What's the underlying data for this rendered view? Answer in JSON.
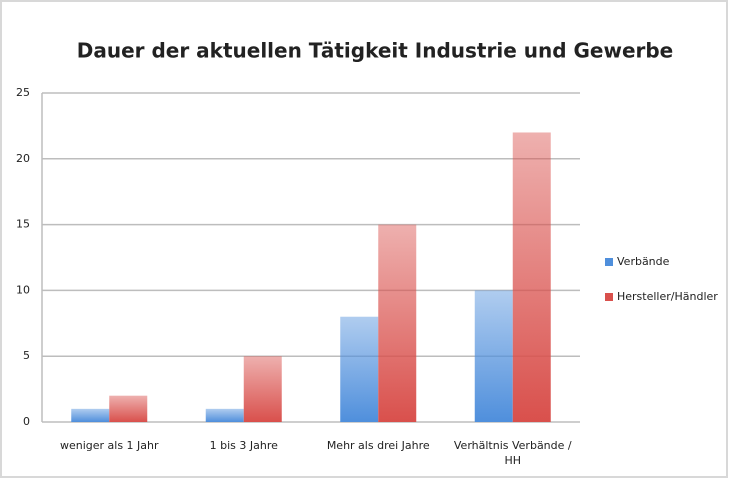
{
  "chart_data": {
    "type": "bar",
    "title": "Dauer der aktuellen Tätigkeit Industrie und Gewerbe",
    "categories": [
      "weniger als 1 Jahr",
      "1 bis 3 Jahre",
      "Mehr als drei Jahre",
      "Verhältnis Verbände / HH"
    ],
    "series": [
      {
        "name": "Verbände",
        "color": "#4f8fdc",
        "values": [
          1,
          1,
          8,
          10
        ]
      },
      {
        "name": "Hersteller/Händler",
        "color": "#d9504c",
        "values": [
          2,
          5,
          15,
          22
        ]
      }
    ],
    "ylim": [
      0,
      25
    ],
    "yticks": [
      0,
      5,
      10,
      15,
      20,
      25
    ],
    "grid": true,
    "legend": "right"
  }
}
